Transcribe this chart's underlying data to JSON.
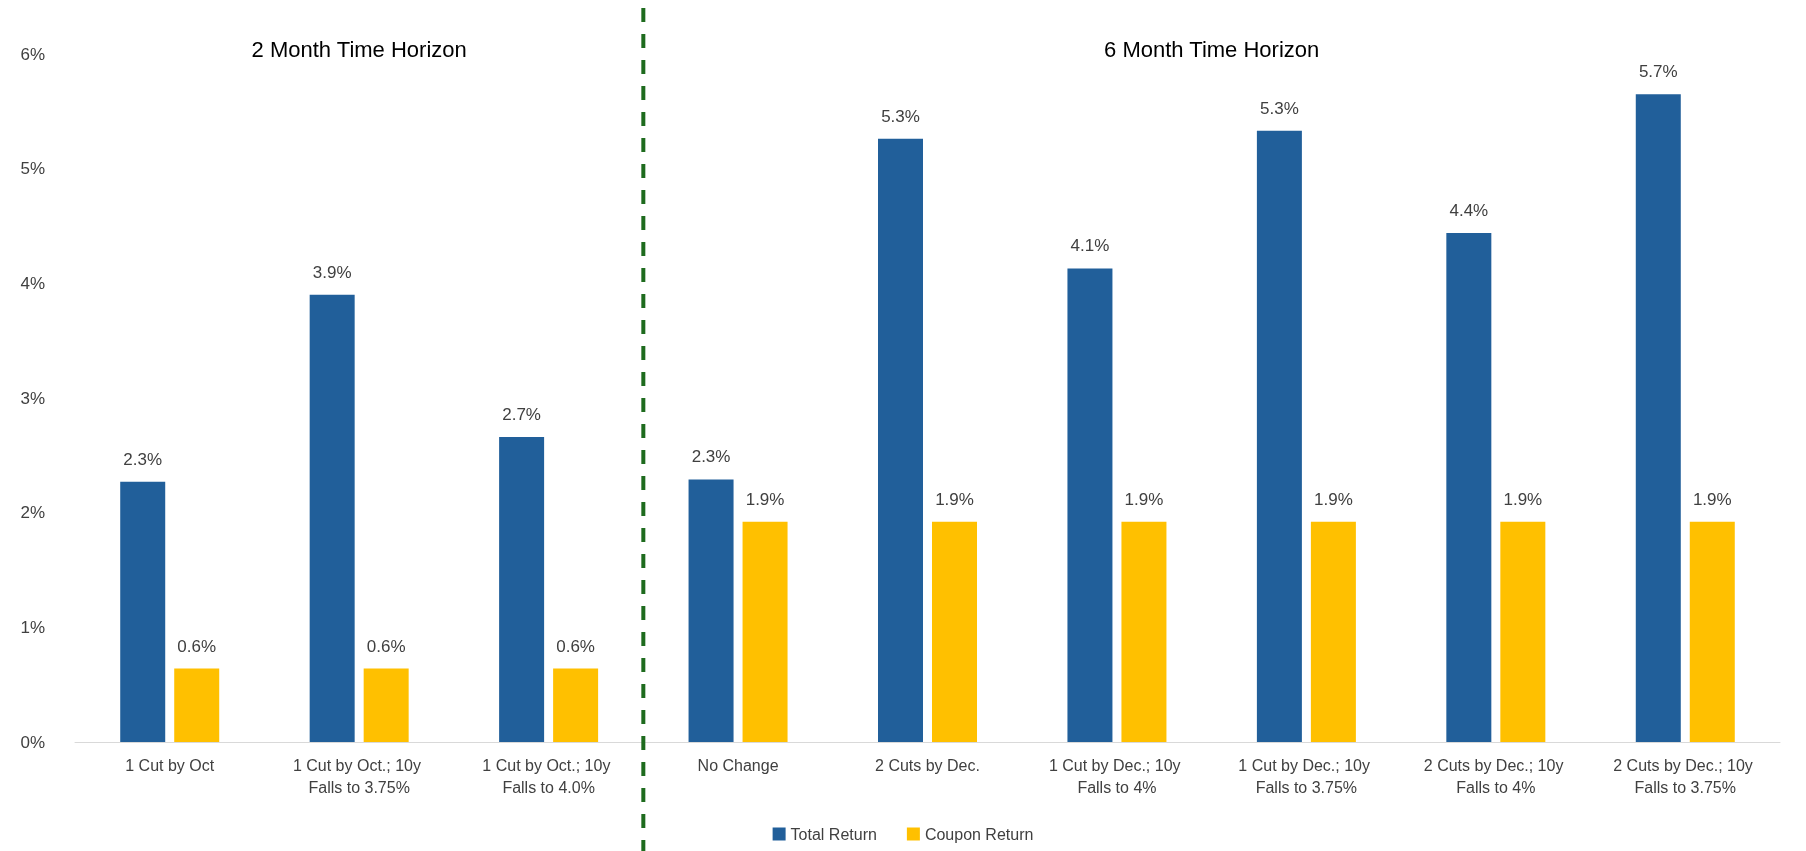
{
  "chart_data": {
    "type": "bar",
    "categories": [
      "1 Cut by Oct",
      "1 Cut by Oct.; 10y Falls to 3.75%",
      "1 Cut by Oct.; 10y Falls to 4.0%",
      "No Change",
      "2 Cuts by Dec.",
      "1 Cut by Dec.; 10y Falls to 4%",
      "1 Cut by Dec.; 10y Falls to 3.75%",
      "2 Cuts by Dec.; 10y Falls to 4%",
      "2 Cuts by Dec.; 10y Falls to 3.75%"
    ],
    "series": [
      {
        "name": "Total Return",
        "color": "#215f9a",
        "values": [
          2.27,
          3.9,
          2.66,
          2.29,
          5.26,
          4.13,
          5.33,
          4.44,
          5.65
        ],
        "value_labels": [
          "2.3%",
          "3.9%",
          "2.7%",
          "2.3%",
          "5.3%",
          "4.1%",
          "5.3%",
          "4.4%",
          "5.7%"
        ]
      },
      {
        "name": "Coupon Return",
        "color": "#ffc000",
        "values": [
          0.64,
          0.64,
          0.64,
          1.92,
          1.92,
          1.92,
          1.92,
          1.92,
          1.92
        ],
        "value_labels": [
          "0.6%",
          "0.6%",
          "0.6%",
          "1.9%",
          "1.9%",
          "1.9%",
          "1.9%",
          "1.9%",
          "1.9%"
        ]
      }
    ],
    "ylim": [
      0,
      6
    ],
    "yticks": [
      {
        "value": 0,
        "label": "0%"
      },
      {
        "value": 1,
        "label": "1%"
      },
      {
        "value": 2,
        "label": "2%"
      },
      {
        "value": 3,
        "label": "3%"
      },
      {
        "value": 4,
        "label": "4%"
      },
      {
        "value": 5,
        "label": "5%"
      },
      {
        "value": 6,
        "label": "6%"
      }
    ],
    "annotations": [
      "2 Month Time Horizon",
      "6 Month Time Horizon"
    ],
    "legend": "bottom",
    "grid": false
  }
}
